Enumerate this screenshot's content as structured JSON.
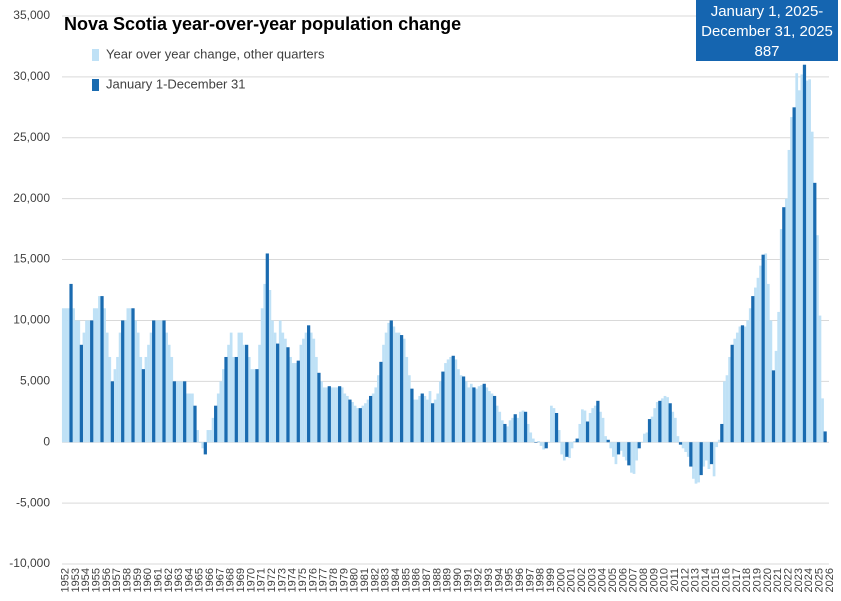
{
  "chart_data": {
    "type": "bar",
    "title": "Nova Scotia year-over-year population change",
    "annotation": {
      "lines": [
        "January 1, 2025-",
        "December 31, 2025"
      ],
      "color": "#1565b0"
    },
    "legend": "upper left",
    "grid": true,
    "ylim": [
      -10000,
      35000
    ],
    "yticks": [
      {
        "value": -10000,
        "label": "-10,000"
      },
      {
        "value": -5000,
        "label": "-5,000"
      },
      0,
      {
        "value": 5000,
        "label": "5,000"
      },
      {
        "value": 10000,
        "label": "10,000"
      },
      {
        "value": 15000,
        "label": "15,000"
      },
      {
        "value": 20000,
        "label": "20,000"
      },
      {
        "value": 25000,
        "label": "25,000"
      },
      {
        "value": 30000,
        "label": "30,000"
      },
      {
        "value": 35000,
        "label": "35,000"
      }
    ],
    "categories": [
      "1952",
      null,
      null,
      null,
      "1953",
      null,
      null,
      null,
      "1954",
      null,
      null,
      null,
      "1955",
      null,
      null,
      null,
      "1956",
      null,
      null,
      null,
      "1957",
      null,
      null,
      null,
      "1958",
      null,
      null,
      null,
      "1959",
      null,
      null,
      null,
      "1960",
      null,
      null,
      null,
      "1961",
      null,
      null,
      null,
      "1962",
      null,
      null,
      null,
      "1963",
      null,
      null,
      null,
      "1964",
      null,
      null,
      null,
      "1965",
      null,
      null,
      null,
      "1966",
      null,
      null,
      null,
      "1967",
      null,
      null,
      null,
      "1968",
      null,
      null,
      null,
      "1969",
      null,
      null,
      null,
      "1970",
      null,
      null,
      null,
      "1971",
      null,
      null,
      null,
      "1972",
      null,
      null,
      null,
      "1973",
      null,
      null,
      null,
      "1974",
      null,
      null,
      null,
      "1975",
      null,
      null,
      null,
      "1976",
      null,
      null,
      null,
      "1977",
      null,
      null,
      null,
      "1978",
      null,
      null,
      null,
      "1979",
      null,
      null,
      null,
      "1980",
      null,
      null,
      null,
      "1981",
      null,
      null,
      null,
      "1982",
      null,
      null,
      null,
      "1983",
      null,
      null,
      null,
      "1984",
      null,
      null,
      null,
      "1985",
      null,
      null,
      null,
      "1986",
      null,
      null,
      null,
      "1987",
      null,
      null,
      null,
      "1988",
      null,
      null,
      null,
      "1989",
      null,
      null,
      null,
      "1990",
      null,
      null,
      null,
      "1991",
      null,
      null,
      null,
      "1992",
      null,
      null,
      null,
      "1993",
      null,
      null,
      null,
      "1994",
      null,
      null,
      null,
      "1995",
      null,
      null,
      null,
      "1996",
      null,
      null,
      null,
      "1997",
      null,
      null,
      null,
      "1998",
      null,
      null,
      null,
      "1999",
      null,
      null,
      null,
      "2000",
      null,
      null,
      null,
      "2001",
      null,
      null,
      null,
      "2002",
      null,
      null,
      null,
      "2003",
      null,
      null,
      null,
      "2004",
      null,
      null,
      null,
      "2005",
      null,
      null,
      null,
      "2006",
      null,
      null,
      null,
      "2007",
      null,
      null,
      null,
      "2008",
      null,
      null,
      null,
      "2009",
      null,
      null,
      null,
      "2010",
      null,
      null,
      null,
      "2011",
      null,
      null,
      null,
      "2012",
      null,
      null,
      null,
      "2013",
      null,
      null,
      null,
      "2014",
      null,
      null,
      null,
      "2015",
      null,
      null,
      null,
      "2016",
      null,
      null,
      null,
      "2017",
      null,
      null,
      null,
      "2018",
      null,
      null,
      null,
      "2019",
      null,
      null,
      null,
      "2020",
      null,
      null,
      null,
      "2021",
      null,
      null,
      null,
      "2022",
      null,
      null,
      null,
      "2023",
      null,
      null,
      null,
      "2024",
      null,
      null,
      null,
      "2025",
      null,
      null,
      null,
      "2026"
    ],
    "series": [
      {
        "name": "Year over year change, other quarters",
        "color": "#bfe1f6",
        "values": [
          11000,
          11000,
          11000,
          null,
          11000,
          10000,
          10000,
          null,
          9000,
          10000,
          10000,
          null,
          11000,
          11000,
          12000,
          null,
          11000,
          9000,
          7000,
          null,
          6000,
          7000,
          9000,
          null,
          10000,
          11000,
          11000,
          null,
          10000,
          9000,
          7000,
          null,
          7000,
          8000,
          9000,
          null,
          10000,
          10000,
          10000,
          null,
          9000,
          8000,
          7000,
          null,
          5000,
          5000,
          5000,
          null,
          4000,
          4000,
          4000,
          null,
          1000,
          0,
          -500,
          null,
          1000,
          1000,
          2000,
          null,
          4000,
          5000,
          6000,
          null,
          8000,
          9000,
          7000,
          null,
          9000,
          9000,
          8000,
          null,
          7000,
          6000,
          6000,
          null,
          8000,
          11000,
          13000,
          null,
          12500,
          10000,
          9000,
          null,
          10000,
          9000,
          8500,
          null,
          7000,
          6500,
          6500,
          null,
          8000,
          8500,
          9000,
          null,
          9000,
          8500,
          7000,
          null,
          5000,
          4500,
          4500,
          null,
          4500,
          4500,
          4500,
          null,
          4500,
          4000,
          3800,
          null,
          3300,
          3000,
          2800,
          null,
          3000,
          3200,
          3500,
          null,
          4000,
          4500,
          5500,
          null,
          8000,
          9000,
          9800,
          null,
          9500,
          9000,
          9000,
          null,
          8500,
          7000,
          5500,
          null,
          3500,
          3500,
          3800,
          null,
          3800,
          3500,
          4200,
          null,
          3500,
          4000,
          5000,
          null,
          6500,
          6800,
          7000,
          null,
          6800,
          6000,
          5500,
          null,
          5000,
          4500,
          4800,
          null,
          4400,
          4600,
          4700,
          null,
          4500,
          4200,
          4000,
          null,
          3000,
          2500,
          1800,
          null,
          1300,
          1800,
          2000,
          null,
          2000,
          2500,
          2600,
          null,
          1500,
          800,
          300,
          null,
          100,
          -300,
          -600,
          null,
          0,
          3000,
          2800,
          null,
          1000,
          -1000,
          -1500,
          null,
          -1300,
          -500,
          100,
          null,
          1500,
          2700,
          2600,
          null,
          2400,
          2800,
          3000,
          null,
          2500,
          2000,
          500,
          null,
          -500,
          -1200,
          -1800,
          null,
          -700,
          -1200,
          -1500,
          null,
          -2500,
          -2600,
          -1500,
          null,
          0,
          700,
          800,
          null,
          2100,
          2800,
          3300,
          null,
          3600,
          3800,
          3700,
          null,
          2500,
          2000,
          500,
          null,
          -500,
          -800,
          -1200,
          null,
          -3000,
          -3400,
          -3300,
          null,
          -2000,
          -1500,
          -2200,
          null,
          -2800,
          -400,
          200,
          null,
          5000,
          5500,
          7000,
          null,
          8500,
          9000,
          9500,
          null,
          9500,
          10000,
          11000,
          null,
          12700,
          13500,
          14500,
          null,
          15500,
          13000,
          10000,
          null,
          7500,
          10700,
          17500,
          null,
          20000,
          24000,
          26700,
          null,
          30300,
          28900,
          30200,
          null,
          29700,
          29800,
          25500,
          null,
          17000,
          10400,
          3600,
          null,
          null
        ]
      },
      {
        "name": "January 1-December 31",
        "color": "#1a6bb0",
        "values": [
          null,
          null,
          null,
          13000,
          null,
          null,
          null,
          8000,
          null,
          null,
          null,
          10000,
          null,
          null,
          null,
          12000,
          null,
          null,
          null,
          5000,
          null,
          null,
          null,
          10000,
          null,
          null,
          null,
          11000,
          null,
          null,
          null,
          6000,
          null,
          null,
          null,
          10000,
          null,
          null,
          null,
          10000,
          null,
          null,
          null,
          5000,
          null,
          null,
          null,
          5000,
          null,
          null,
          null,
          3000,
          null,
          null,
          null,
          -1000,
          null,
          null,
          null,
          3000,
          null,
          null,
          null,
          7000,
          null,
          null,
          null,
          7000,
          null,
          null,
          null,
          8000,
          null,
          null,
          null,
          6000,
          null,
          null,
          null,
          15500,
          null,
          null,
          null,
          8100,
          null,
          null,
          null,
          7800,
          null,
          null,
          null,
          6700,
          null,
          null,
          null,
          9600,
          null,
          null,
          null,
          5700,
          null,
          null,
          null,
          4600,
          null,
          null,
          null,
          4600,
          null,
          null,
          null,
          3500,
          null,
          null,
          null,
          2800,
          null,
          null,
          null,
          3800,
          null,
          null,
          null,
          6600,
          null,
          null,
          null,
          10000,
          null,
          null,
          null,
          8800,
          null,
          null,
          null,
          4400,
          null,
          null,
          null,
          4000,
          null,
          null,
          null,
          3200,
          null,
          null,
          null,
          5800,
          null,
          null,
          null,
          7100,
          null,
          null,
          null,
          5400,
          null,
          null,
          null,
          4500,
          null,
          null,
          null,
          4800,
          null,
          null,
          null,
          3800,
          null,
          null,
          null,
          1500,
          null,
          null,
          null,
          2300,
          null,
          null,
          null,
          2500,
          null,
          null,
          null,
          0,
          null,
          null,
          null,
          -500,
          null,
          null,
          null,
          2400,
          null,
          null,
          null,
          -1200,
          null,
          null,
          null,
          300,
          null,
          null,
          null,
          1700,
          null,
          null,
          null,
          3400,
          null,
          null,
          null,
          200,
          null,
          null,
          null,
          -1000,
          null,
          null,
          null,
          -1900,
          null,
          null,
          null,
          -500,
          null,
          null,
          null,
          1900,
          null,
          null,
          null,
          3400,
          null,
          null,
          null,
          3200,
          null,
          null,
          null,
          -200,
          null,
          null,
          null,
          -2000,
          null,
          null,
          null,
          -2700,
          null,
          null,
          null,
          -1800,
          null,
          null,
          null,
          1500,
          null,
          null,
          null,
          8000,
          null,
          null,
          null,
          9600,
          null,
          null,
          null,
          12000,
          null,
          null,
          null,
          15400,
          null,
          null,
          null,
          5900,
          null,
          null,
          null,
          19300,
          null,
          null,
          null,
          27500,
          null,
          null,
          null,
          31000,
          null,
          null,
          null,
          21300,
          null,
          null,
          null,
          887,
          null
        ]
      }
    ]
  }
}
